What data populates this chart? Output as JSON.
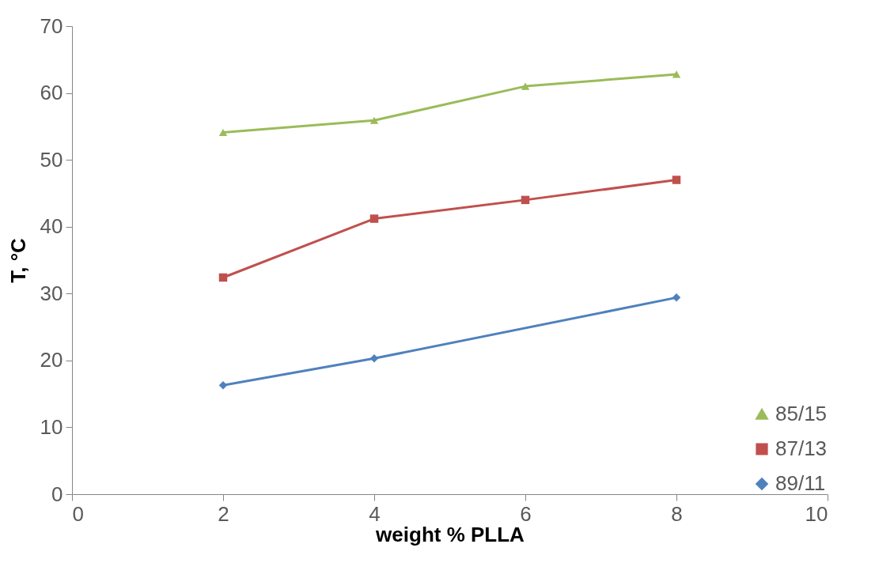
{
  "chart_data": {
    "type": "line",
    "xlabel": "weight % PLLA",
    "ylabel": "T, °C",
    "xlim": [
      0,
      10
    ],
    "xticks": [
      0,
      2,
      4,
      6,
      8,
      10
    ],
    "ylim": [
      0,
      70
    ],
    "yticks": [
      0,
      10,
      20,
      30,
      40,
      50,
      60,
      70
    ],
    "grid": false,
    "legend": "bottom right",
    "series": [
      {
        "name": "85/15",
        "color": "#9bbb59",
        "marker": "triangle",
        "x": [
          2,
          4,
          6,
          8
        ],
        "values": [
          54.1,
          55.9,
          61,
          62.8
        ]
      },
      {
        "name": "87/13",
        "color": "#c0504d",
        "marker": "square",
        "x": [
          2,
          4,
          6,
          8
        ],
        "values": [
          32.4,
          41.2,
          44,
          47
        ]
      },
      {
        "name": "89/11",
        "color": "#4f81bd",
        "marker": "diamond",
        "x": [
          2,
          4,
          8
        ],
        "values": [
          16.3,
          20.3,
          29.4
        ]
      }
    ]
  }
}
